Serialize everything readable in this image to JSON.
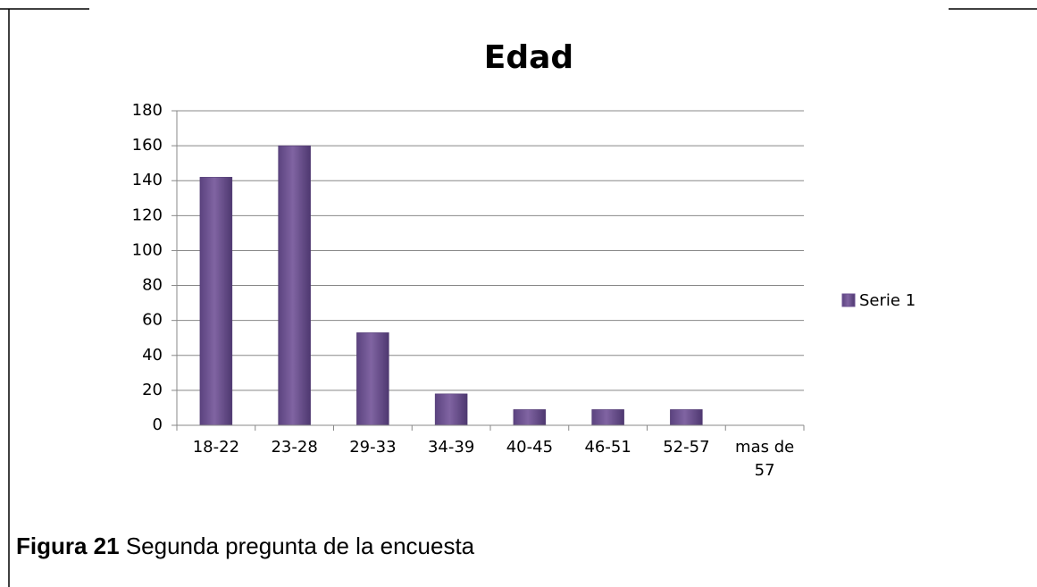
{
  "chart_data": {
    "type": "bar",
    "title": "Edad",
    "categories": [
      "18-22",
      "23-28",
      "29-33",
      "34-39",
      "40-45",
      "46-51",
      "52-57",
      "mas de 57"
    ],
    "series": [
      {
        "name": "Serie 1",
        "color": "#8064a2",
        "values": [
          142,
          160,
          53,
          18,
          9,
          9,
          9,
          0
        ]
      }
    ],
    "ylim": [
      0,
      180
    ],
    "yticks": [
      0,
      20,
      40,
      60,
      80,
      100,
      120,
      140,
      160,
      180
    ],
    "grid": true,
    "legend": "right"
  },
  "caption": {
    "label": "Figura 21",
    "text": "Segunda pregunta de la encuesta"
  }
}
